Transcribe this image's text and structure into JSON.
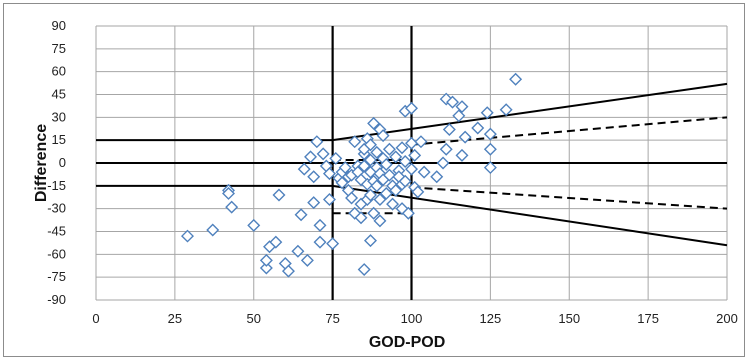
{
  "chart_data": {
    "type": "scatter",
    "xlabel": "GOD-POD",
    "ylabel": "Difference",
    "xlim": [
      0,
      200
    ],
    "ylim": [
      -90,
      90
    ],
    "x_ticks": [
      0,
      25,
      50,
      75,
      100,
      125,
      150,
      175,
      200
    ],
    "y_ticks": [
      90,
      75,
      60,
      45,
      30,
      15,
      0,
      -15,
      -30,
      -45,
      -60,
      -75,
      -90
    ],
    "grid": true,
    "legend": "none",
    "marker": "diamond",
    "colors": {
      "marker": "#4f81bd",
      "line": "#000000",
      "grid": "#a6a6a6"
    },
    "points": [
      [
        29,
        -48
      ],
      [
        37,
        -44
      ],
      [
        42,
        -18
      ],
      [
        42,
        -20
      ],
      [
        43,
        -29
      ],
      [
        50,
        -41
      ],
      [
        54,
        -69
      ],
      [
        54,
        -64
      ],
      [
        55,
        -55
      ],
      [
        57,
        -52
      ],
      [
        58,
        -21
      ],
      [
        60,
        -66
      ],
      [
        61,
        -71
      ],
      [
        64,
        -58
      ],
      [
        65,
        -34
      ],
      [
        66,
        -4
      ],
      [
        67,
        -64
      ],
      [
        68,
        4
      ],
      [
        69,
        -9
      ],
      [
        69,
        -26
      ],
      [
        70,
        14
      ],
      [
        71,
        -41
      ],
      [
        71,
        -52
      ],
      [
        72,
        6
      ],
      [
        73,
        -2
      ],
      [
        74,
        -7
      ],
      [
        74,
        -24
      ],
      [
        75,
        -53
      ],
      [
        76,
        3
      ],
      [
        77,
        -10
      ],
      [
        78,
        -13
      ],
      [
        78,
        -6
      ],
      [
        79,
        -3
      ],
      [
        80,
        -9
      ],
      [
        80,
        -18
      ],
      [
        81,
        -23
      ],
      [
        81,
        -8
      ],
      [
        82,
        14
      ],
      [
        82,
        -33
      ],
      [
        83,
        -2
      ],
      [
        83,
        -6
      ],
      [
        84,
        -11
      ],
      [
        84,
        -36
      ],
      [
        84,
        -27
      ],
      [
        85,
        6
      ],
      [
        85,
        9
      ],
      [
        85,
        -2
      ],
      [
        85,
        -70
      ],
      [
        86,
        -14
      ],
      [
        86,
        16
      ],
      [
        86,
        -24
      ],
      [
        87,
        12
      ],
      [
        87,
        2
      ],
      [
        87,
        -6
      ],
      [
        87,
        -21
      ],
      [
        87,
        -51
      ],
      [
        88,
        -12
      ],
      [
        88,
        26
      ],
      [
        88,
        -33
      ],
      [
        89,
        7
      ],
      [
        89,
        -3
      ],
      [
        89,
        -15
      ],
      [
        90,
        22
      ],
      [
        90,
        -7
      ],
      [
        90,
        -24
      ],
      [
        90,
        -38
      ],
      [
        91,
        18
      ],
      [
        91,
        3
      ],
      [
        91,
        -11
      ],
      [
        92,
        -1
      ],
      [
        92,
        -20
      ],
      [
        93,
        9
      ],
      [
        93,
        -8
      ],
      [
        94,
        -27
      ],
      [
        94,
        -15
      ],
      [
        95,
        4
      ],
      [
        95,
        -18
      ],
      [
        96,
        -5
      ],
      [
        96,
        -9
      ],
      [
        97,
        10
      ],
      [
        97,
        -30
      ],
      [
        97,
        -14
      ],
      [
        98,
        34
      ],
      [
        98,
        1
      ],
      [
        98,
        -12
      ],
      [
        99,
        -33
      ],
      [
        100,
        36
      ],
      [
        100,
        13
      ],
      [
        100,
        -4
      ],
      [
        101,
        -16
      ],
      [
        101,
        5
      ],
      [
        102,
        -19
      ],
      [
        103,
        14
      ],
      [
        104,
        -6
      ],
      [
        108,
        -9
      ],
      [
        110,
        0
      ],
      [
        111,
        42
      ],
      [
        111,
        9
      ],
      [
        112,
        22
      ],
      [
        113,
        40
      ],
      [
        115,
        31
      ],
      [
        116,
        37
      ],
      [
        116,
        5
      ],
      [
        117,
        17
      ],
      [
        121,
        23
      ],
      [
        124,
        33
      ],
      [
        125,
        19
      ],
      [
        125,
        9
      ],
      [
        125,
        -3
      ],
      [
        130,
        35
      ],
      [
        133,
        55
      ]
    ],
    "reference_lines": {
      "solid": [
        [
          [
            0,
            15
          ],
          [
            75,
            15
          ],
          [
            200,
            52
          ]
        ],
        [
          [
            0,
            0
          ],
          [
            200,
            0
          ]
        ],
        [
          [
            0,
            -15
          ],
          [
            75,
            -15
          ],
          [
            200,
            -54
          ]
        ]
      ],
      "dashed": [
        [
          [
            100,
            12
          ],
          [
            200,
            30
          ]
        ],
        [
          [
            100,
            -16
          ],
          [
            200,
            -30
          ]
        ],
        [
          [
            75,
            2
          ],
          [
            100,
            2
          ]
        ],
        [
          [
            75,
            -33
          ],
          [
            100,
            -33
          ]
        ]
      ],
      "vertical": [
        75,
        100
      ]
    }
  }
}
